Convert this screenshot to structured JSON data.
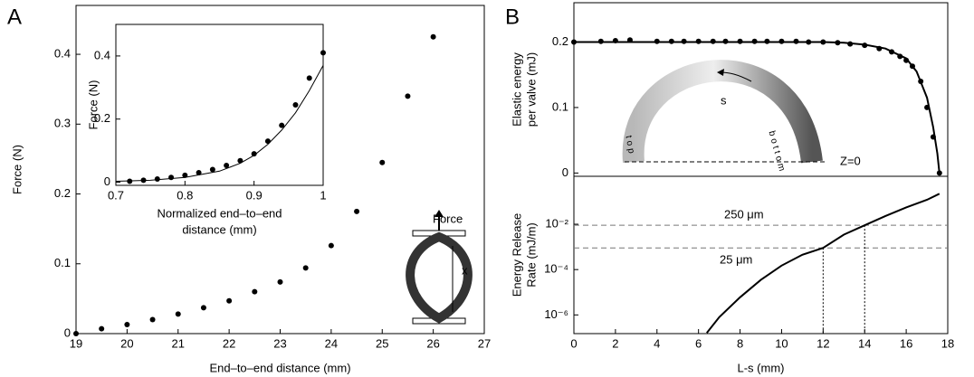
{
  "chart_data": [
    {
      "type": "scatter",
      "panel_label": "A",
      "xlabel": "End–to–end distance (mm)",
      "ylabel": "Force (N)",
      "xlim": [
        19,
        27
      ],
      "ylim": [
        0,
        0.47
      ],
      "xticks": [
        19,
        20,
        21,
        22,
        23,
        24,
        25,
        26,
        27
      ],
      "yticks": [
        0,
        0.1,
        0.2,
        0.3,
        0.4
      ],
      "series": [
        {
          "mode": "markers",
          "color": "#000000",
          "x": [
            19,
            19.5,
            20,
            20.5,
            21,
            21.5,
            22,
            22.5,
            23,
            23.5,
            24,
            24.5,
            25,
            25.5,
            26
          ],
          "values": [
            0,
            0.007,
            0.013,
            0.02,
            0.028,
            0.037,
            0.047,
            0.06,
            0.074,
            0.094,
            0.126,
            0.175,
            0.245,
            0.34,
            0.425
          ]
        }
      ],
      "annotations": [
        "Force",
        "x"
      ]
    },
    {
      "type": "scatter",
      "xlabel": [
        "Normalized end–to–end",
        "distance (mm)"
      ],
      "ylabel": "Force (N)",
      "xlim": [
        0.7,
        1
      ],
      "ylim": [
        -0.01,
        0.5
      ],
      "xticks": [
        0.7,
        0.8,
        0.9,
        1
      ],
      "yticks": [
        0,
        0.2,
        0.4
      ],
      "series": [
        {
          "mode": "markers",
          "color": "#000000",
          "x": [
            0.72,
            0.74,
            0.76,
            0.78,
            0.8,
            0.82,
            0.84,
            0.86,
            0.88,
            0.9,
            0.92,
            0.94,
            0.96,
            0.98,
            1.0
          ],
          "values": [
            0.003,
            0.006,
            0.01,
            0.015,
            0.022,
            0.03,
            0.04,
            0.053,
            0.068,
            0.09,
            0.13,
            0.18,
            0.245,
            0.33,
            0.41
          ]
        },
        {
          "mode": "lines",
          "color": "#000000",
          "x": [
            0.7,
            0.75,
            0.8,
            0.85,
            0.88,
            0.9,
            0.92,
            0.94,
            0.96,
            0.98,
            1.0
          ],
          "values": [
            0.003,
            0.006,
            0.015,
            0.035,
            0.06,
            0.085,
            0.12,
            0.165,
            0.22,
            0.29,
            0.37
          ]
        }
      ]
    },
    {
      "type": "scatter",
      "panel_label": "B",
      "ylabel": [
        "Elastic energy",
        "per valve (mJ)"
      ],
      "xlim": [
        0,
        18
      ],
      "ylim": [
        -0.005,
        0.26
      ],
      "yticks": [
        0,
        0.1,
        0.2
      ],
      "series": [
        {
          "mode": "markers",
          "color": "#000000",
          "x": [
            0,
            1.3,
            2,
            2.7,
            4,
            4.7,
            5.3,
            6,
            6.7,
            7.3,
            8,
            8.7,
            9.3,
            10,
            10.7,
            11.3,
            12,
            12.7,
            13.3,
            14,
            14.7,
            15.3,
            15.7,
            16,
            16.3,
            16.7,
            17,
            17.3,
            17.6
          ],
          "values": [
            0.2,
            0.201,
            0.202,
            0.203,
            0.201,
            0.201,
            0.201,
            0.201,
            0.201,
            0.201,
            0.201,
            0.201,
            0.201,
            0.201,
            0.201,
            0.2,
            0.2,
            0.199,
            0.197,
            0.195,
            0.19,
            0.185,
            0.178,
            0.172,
            0.163,
            0.14,
            0.1,
            0.055,
            0
          ]
        },
        {
          "mode": "lines",
          "color": "#000000",
          "x": [
            0,
            12,
            13,
            14,
            15,
            16,
            16.5,
            17,
            17.3,
            17.5,
            17.6
          ],
          "values": [
            0.2,
            0.2,
            0.199,
            0.196,
            0.19,
            0.175,
            0.155,
            0.115,
            0.07,
            0.03,
            0
          ]
        }
      ],
      "annotations": [
        "s",
        "top",
        "bottom",
        "Z=0"
      ]
    },
    {
      "type": "line",
      "xlabel": "L-s (mm)",
      "ylabel": [
        "Energy Release",
        "Rate (mJ/m)"
      ],
      "yscale": "log",
      "xlim": [
        0,
        18
      ],
      "ylim": [
        1.5e-07,
        1.3
      ],
      "xticks": [
        0,
        2,
        4,
        6,
        8,
        10,
        12,
        14,
        16,
        18
      ],
      "yticks": [
        {
          "value": 1e-06,
          "label": "10⁻⁶"
        },
        {
          "value": 0.0001,
          "label": "10⁻⁴"
        },
        {
          "value": 0.01,
          "label": "10⁻²"
        }
      ],
      "series": [
        {
          "mode": "lines",
          "color": "#000000",
          "x": [
            6.4,
            7,
            8,
            9,
            10,
            11,
            12,
            13,
            14,
            15,
            16,
            17,
            17.6
          ],
          "values": [
            1.6e-07,
            8e-07,
            6e-06,
            3.5e-05,
            0.00015,
            0.00045,
            0.0009,
            0.0035,
            0.009,
            0.023,
            0.055,
            0.12,
            0.22
          ]
        }
      ],
      "hlines": [
        0.009,
        0.0009
      ],
      "vlines": [
        12,
        14
      ],
      "annotations": [
        "250 μm",
        "25 μm"
      ]
    }
  ]
}
